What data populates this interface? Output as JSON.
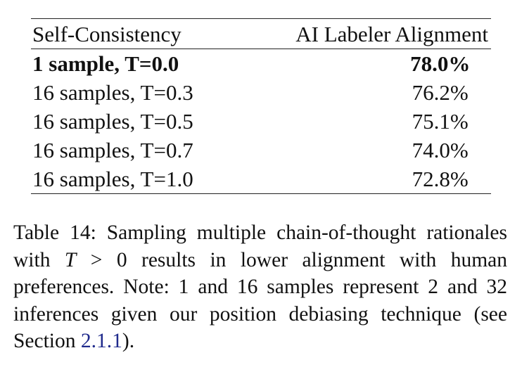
{
  "table": {
    "headers": {
      "config": "Self-Consistency",
      "alignment": "AI Labeler Alignment"
    },
    "rows": [
      {
        "config": "1 sample, T=0.0",
        "alignment": "78.0%",
        "bold": true
      },
      {
        "config": "16 samples, T=0.3",
        "alignment": "76.2%",
        "bold": false
      },
      {
        "config": "16 samples, T=0.5",
        "alignment": "75.1%",
        "bold": false
      },
      {
        "config": "16 samples, T=0.7",
        "alignment": "74.0%",
        "bold": false
      },
      {
        "config": "16 samples, T=1.0",
        "alignment": "72.8%",
        "bold": false
      }
    ]
  },
  "caption": {
    "text_before": "Table 14: Sampling multiple chain-of-thought rationales with",
    "var_t": "T",
    "operator": ">",
    "zero": "0",
    "text_middle": "results in lower alignment with human preferences. Note: 1 and 16 samples represent 2 and 32 inferences given our position debiasing technique (see Section",
    "section_ref": "2.1.1",
    "text_after": ")."
  }
}
